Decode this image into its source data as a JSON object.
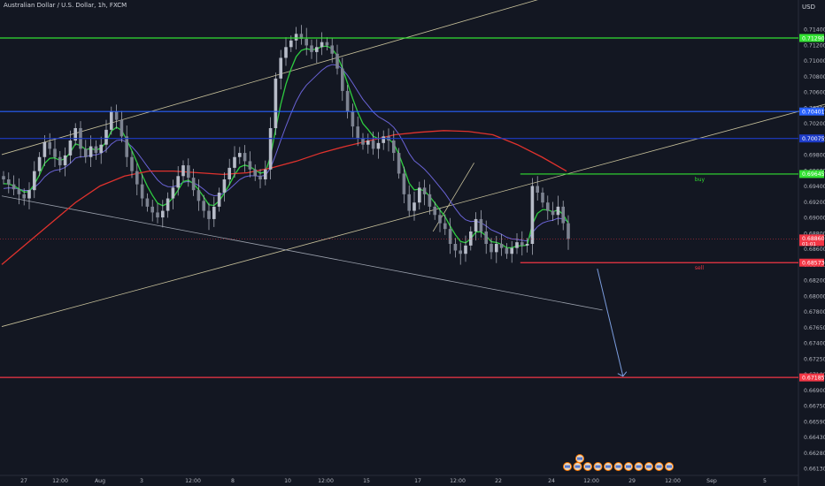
{
  "header": {
    "title": "Australian Dollar / U.S. Dollar, 1h, FXCM",
    "currency": "USD"
  },
  "colors": {
    "background": "#131722",
    "bull": "#b7bcc8",
    "bear": "#b7bcc8",
    "ema_fast": "#2ecc40",
    "ema_slow": "#6a63d6",
    "ma_long": "#e0322d",
    "level_green": "#32e032",
    "level_blue": "#2962ff",
    "level_red": "#f23645",
    "channel": "#c7c09a",
    "trend_white": "#9aa0ac",
    "arrow": "#7c9ee0",
    "axis_text": "#b2b5be"
  },
  "chart_data": {
    "type": "candlestick",
    "symbol": "AUDUSD",
    "timeframe": "1h",
    "ylim": [
      0.66,
      0.716
    ],
    "x_ticks": [
      "27",
      "12:00",
      "Aug",
      "3",
      "12:00",
      "8",
      "10",
      "12:00",
      "15",
      "17",
      "12:00",
      "22",
      "24",
      "12:00",
      "29",
      "12:00",
      "Sep",
      "5"
    ],
    "y_ticks": [
      "0.71400",
      "0.71200",
      "0.71000",
      "0.70800",
      "0.70600",
      "0.70400",
      "0.70200",
      "0.70000",
      "0.69800",
      "0.69600",
      "0.69400",
      "0.69200",
      "0.69000",
      "0.68800",
      "0.68600",
      "0.68400",
      "0.68200",
      "0.68000",
      "0.67800",
      "0.67650",
      "0.67400",
      "0.67250",
      "0.67100",
      "0.66900",
      "0.66750",
      "0.66590",
      "0.66430",
      "0.66280",
      "0.66130"
    ],
    "levels": [
      {
        "name": "resistance-top",
        "price": 0.7129,
        "label": "0.71290",
        "color": "#32e032"
      },
      {
        "name": "level-blue-1",
        "price": 0.70401,
        "label": "0.70401",
        "color": "#2962ff"
      },
      {
        "name": "level-blue-2",
        "price": 0.70075,
        "label": "0.70075",
        "color": "#1e3cc8"
      },
      {
        "name": "buy-level",
        "price": 0.69645,
        "label": "0.69645",
        "color": "#32e032",
        "text": "buy"
      },
      {
        "name": "sell-level",
        "price": 0.68573,
        "label": "0.68573",
        "color": "#f23645",
        "text": "sell"
      },
      {
        "name": "target-level",
        "price": 0.67185,
        "label": "0.67185",
        "color": "#f23645"
      }
    ],
    "current_price": {
      "price": 0.6886,
      "label": "0.68860",
      "countdown": "01:01"
    },
    "closes": [
      0.6958,
      0.6952,
      0.6946,
      0.694,
      0.6935,
      0.6945,
      0.6968,
      0.6985,
      0.7003,
      0.6995,
      0.6985,
      0.6975,
      0.6987,
      0.7005,
      0.702,
      0.6995,
      0.6985,
      0.6998,
      0.699,
      0.7,
      0.7018,
      0.704,
      0.703,
      0.701,
      0.6985,
      0.6968,
      0.6952,
      0.6935,
      0.6925,
      0.6918,
      0.6912,
      0.692,
      0.6935,
      0.6948,
      0.6962,
      0.6975,
      0.696,
      0.6945,
      0.6932,
      0.692,
      0.691,
      0.6925,
      0.6942,
      0.6958,
      0.6972,
      0.6985,
      0.699,
      0.698,
      0.697,
      0.6962,
      0.6958,
      0.697,
      0.702,
      0.708,
      0.7105,
      0.7118,
      0.7126,
      0.7134,
      0.7128,
      0.712,
      0.7112,
      0.7118,
      0.7124,
      0.712,
      0.711,
      0.7092,
      0.7065,
      0.704,
      0.7022,
      0.7008,
      0.7,
      0.7005,
      0.6995,
      0.7002,
      0.701,
      0.7005,
      0.699,
      0.6965,
      0.694,
      0.692,
      0.693,
      0.6948,
      0.694,
      0.6925,
      0.6915,
      0.6905,
      0.6898,
      0.688,
      0.6872,
      0.6868,
      0.6878,
      0.6895,
      0.691,
      0.6895,
      0.688,
      0.687,
      0.688,
      0.6875,
      0.6868,
      0.6875,
      0.6882,
      0.6878,
      0.688,
      0.695,
      0.6942,
      0.693,
      0.692,
      0.6915,
      0.6925,
      0.6905,
      0.6886
    ],
    "ema_fast_start": 0.695,
    "ema_slow_start": 0.6945,
    "ma_long": [
      0.6855,
      0.688,
      0.6905,
      0.693,
      0.695,
      0.6962,
      0.6968,
      0.6968,
      0.6966,
      0.6964,
      0.6966,
      0.6972,
      0.698,
      0.699,
      0.6998,
      0.7005,
      0.7012,
      0.7015,
      0.7017,
      0.7016,
      0.7012,
      0.7,
      0.6985,
      0.6968
    ],
    "drawings": {
      "channel_upper": {
        "start": [
          0,
          0.6988
        ],
        "end": [
          107,
          0.718
        ]
      },
      "channel_lower": {
        "start": [
          0,
          0.678
        ],
        "end": [
          210,
          0.7132
        ]
      },
      "trend_down": {
        "start": [
          0,
          0.6938
        ],
        "end": [
          117,
          0.68
        ]
      },
      "small_up": {
        "start": [
          84,
          0.6895
        ],
        "end": [
          92,
          0.6978
        ]
      },
      "projection_arrow": {
        "start": [
          116,
          0.685
        ],
        "end": [
          121,
          0.672
        ]
      }
    }
  },
  "events": [
    {
      "id": "a",
      "icon": "flag-icon"
    },
    {
      "id": "b",
      "icon": "flag-icon"
    },
    {
      "id": "c",
      "icon": "flag-icon"
    },
    {
      "id": "d",
      "icon": "flag-icon"
    },
    {
      "id": "e",
      "icon": "flag-icon"
    },
    {
      "id": "f",
      "icon": "flag-icon"
    },
    {
      "id": "g",
      "icon": "flag-icon"
    },
    {
      "id": "h",
      "icon": "flag-icon"
    },
    {
      "id": "i",
      "icon": "flag-icon"
    },
    {
      "id": "j",
      "icon": "flag-icon"
    },
    {
      "id": "k",
      "icon": "flag-icon"
    },
    {
      "id": "l",
      "icon": "flag-icon"
    }
  ]
}
